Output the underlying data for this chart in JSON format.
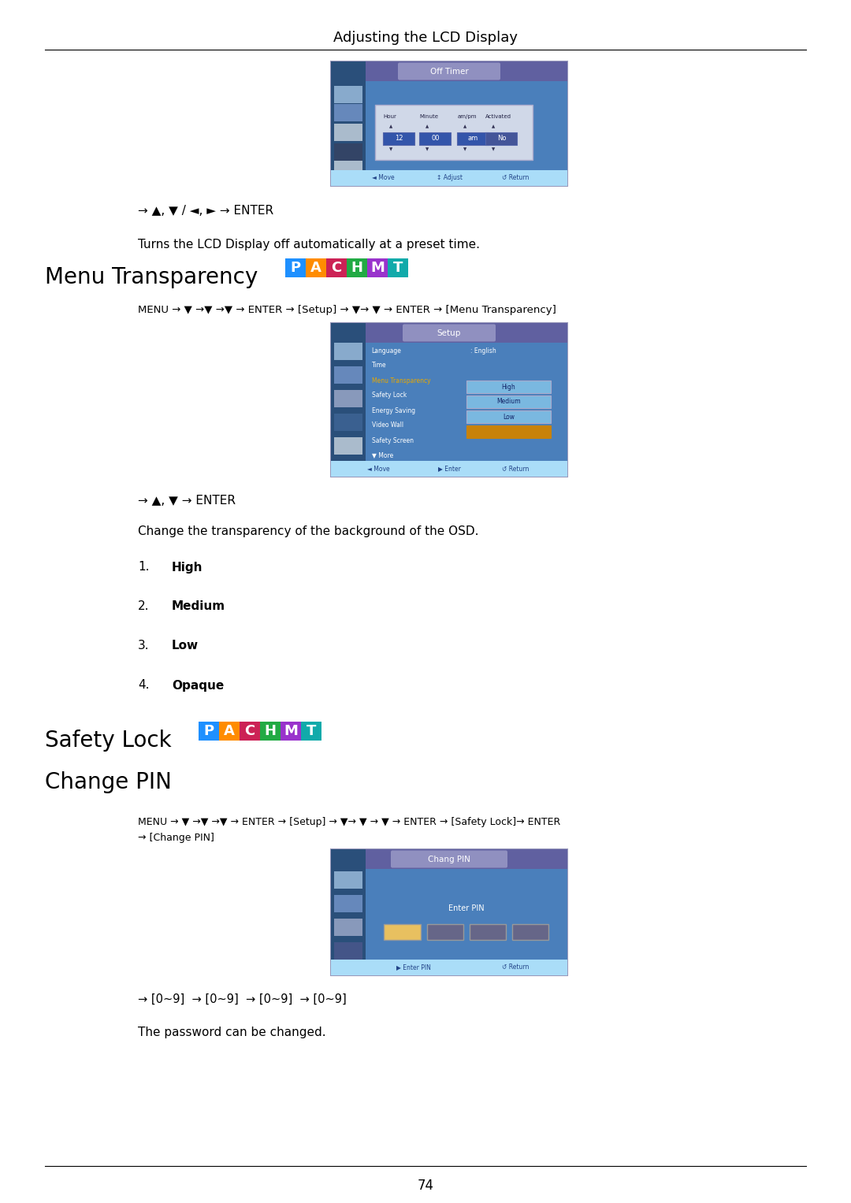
{
  "page_title": "Adjusting the LCD Display",
  "page_number": "74",
  "bg_color": "#ffffff",
  "section1_nav": "→ ▲, ▼ / ◄, ► → ENTER",
  "section1_desc": "Turns the LCD Display off automatically at a preset time.",
  "section2_heading": "Menu Transparency",
  "pachmt_letters": [
    "P",
    "A",
    "C",
    "H",
    "M",
    "T"
  ],
  "pachmt_colors": [
    "#1e90ff",
    "#ff8c00",
    "#cc2255",
    "#22aa44",
    "#9933cc",
    "#11aaaa"
  ],
  "section2_nav": "MENU → ▼ →▼ →▼ → ENTER → [Setup] → ▼→ ▼ → ENTER → [Menu Transparency]",
  "section2_nav2": "→ ▲, ▼ → ENTER",
  "section2_desc": "Change the transparency of the background of the OSD.",
  "section2_items": [
    "High",
    "Medium",
    "Low",
    "Opaque"
  ],
  "section3_heading": "Safety Lock",
  "section4_heading": "Change PIN",
  "section4_nav1": "MENU → ▼ →▼ →▼ → ENTER → [Setup] → ▼→ ▼ → ▼ → ENTER → [Safety Lock]→ ENTER",
  "section4_nav2": "→ [Change PIN]",
  "section4_nav3": "→ [0∼9]  → [0∼9]  → [0∼9]  → [0∼9]",
  "section4_desc": "The password can be changed.",
  "screen_bg": "#4a7fbb",
  "screen_sidebar": "#2a4f7a",
  "screen_titlebar": "#9090b8",
  "screen_bottom": "#aaddf8",
  "screen_border": "#9999bb"
}
